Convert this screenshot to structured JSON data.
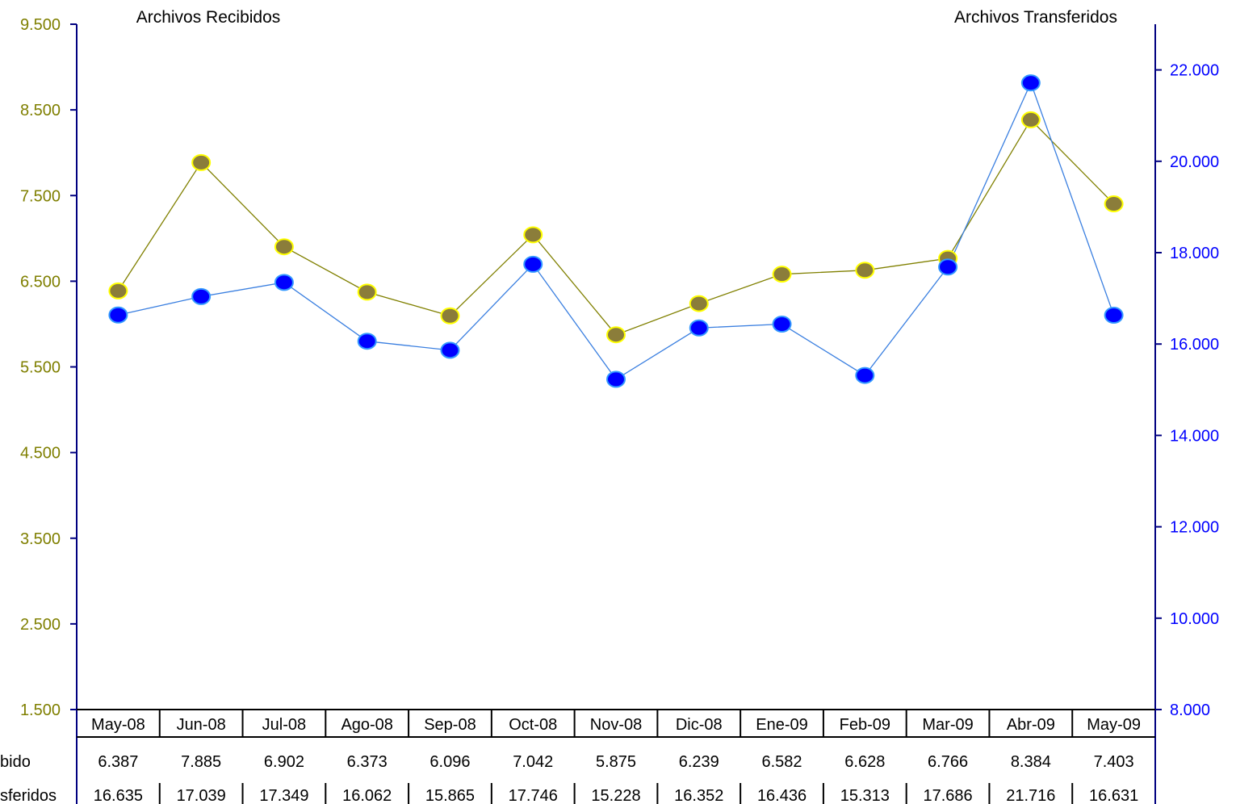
{
  "chart_data": {
    "type": "line",
    "left_axis_title": "Archivos Recibidos",
    "right_axis_title": "Archivos Transferidos",
    "categories": [
      "May-08",
      "Jun-08",
      "Jul-08",
      "Ago-08",
      "Sep-08",
      "Oct-08",
      "Nov-08",
      "Dic-08",
      "Ene-09",
      "Feb-09",
      "Mar-09",
      "Abr-09",
      "May-09"
    ],
    "left_axis": {
      "min": 1500,
      "max": 9500,
      "ticks": [
        "9.500",
        "8.500",
        "7.500",
        "6.500",
        "5.500",
        "4.500",
        "3.500",
        "2.500",
        "1.500"
      ],
      "tick_values": [
        9500,
        8500,
        7500,
        6500,
        5500,
        4500,
        3500,
        2500,
        1500
      ],
      "color": "#7f7f00"
    },
    "right_axis": {
      "min": 8000,
      "max": 23000,
      "ticks": [
        "22.000",
        "20.000",
        "18.000",
        "16.000",
        "14.000",
        "12.000",
        "10.000",
        "8.000"
      ],
      "tick_values": [
        22000,
        20000,
        18000,
        16000,
        14000,
        12000,
        10000,
        8000
      ],
      "color": "#0000ff"
    },
    "series": [
      {
        "name": "Recibido",
        "table_label": "bido",
        "axis": "left",
        "values": [
          6387,
          7885,
          6902,
          6373,
          6096,
          7042,
          5875,
          6239,
          6582,
          6628,
          6766,
          8384,
          7403
        ],
        "labels": [
          "6.387",
          "7.885",
          "6.902",
          "6.373",
          "6.096",
          "7.042",
          "5.875",
          "6.239",
          "6.582",
          "6.628",
          "6.766",
          "8.384",
          "7.403"
        ],
        "line_color": "#808000",
        "marker_fill": "#8b7d3a",
        "marker_stroke": "#ffff00"
      },
      {
        "name": "Transferidos",
        "table_label": "sferidos",
        "axis": "right",
        "values": [
          16635,
          17039,
          17349,
          16062,
          15865,
          17746,
          15228,
          16352,
          16436,
          15313,
          17686,
          21716,
          16631
        ],
        "labels": [
          "16.635",
          "17.039",
          "17.349",
          "16.062",
          "15.865",
          "17.746",
          "15.228",
          "16.352",
          "16.436",
          "15.313",
          "17.686",
          "21.716",
          "16.631"
        ],
        "line_color": "#3a7fe0",
        "marker_fill": "#0000ff",
        "marker_stroke": "#3399ff"
      }
    ],
    "grid": false,
    "legend": "data-table-bottom"
  }
}
